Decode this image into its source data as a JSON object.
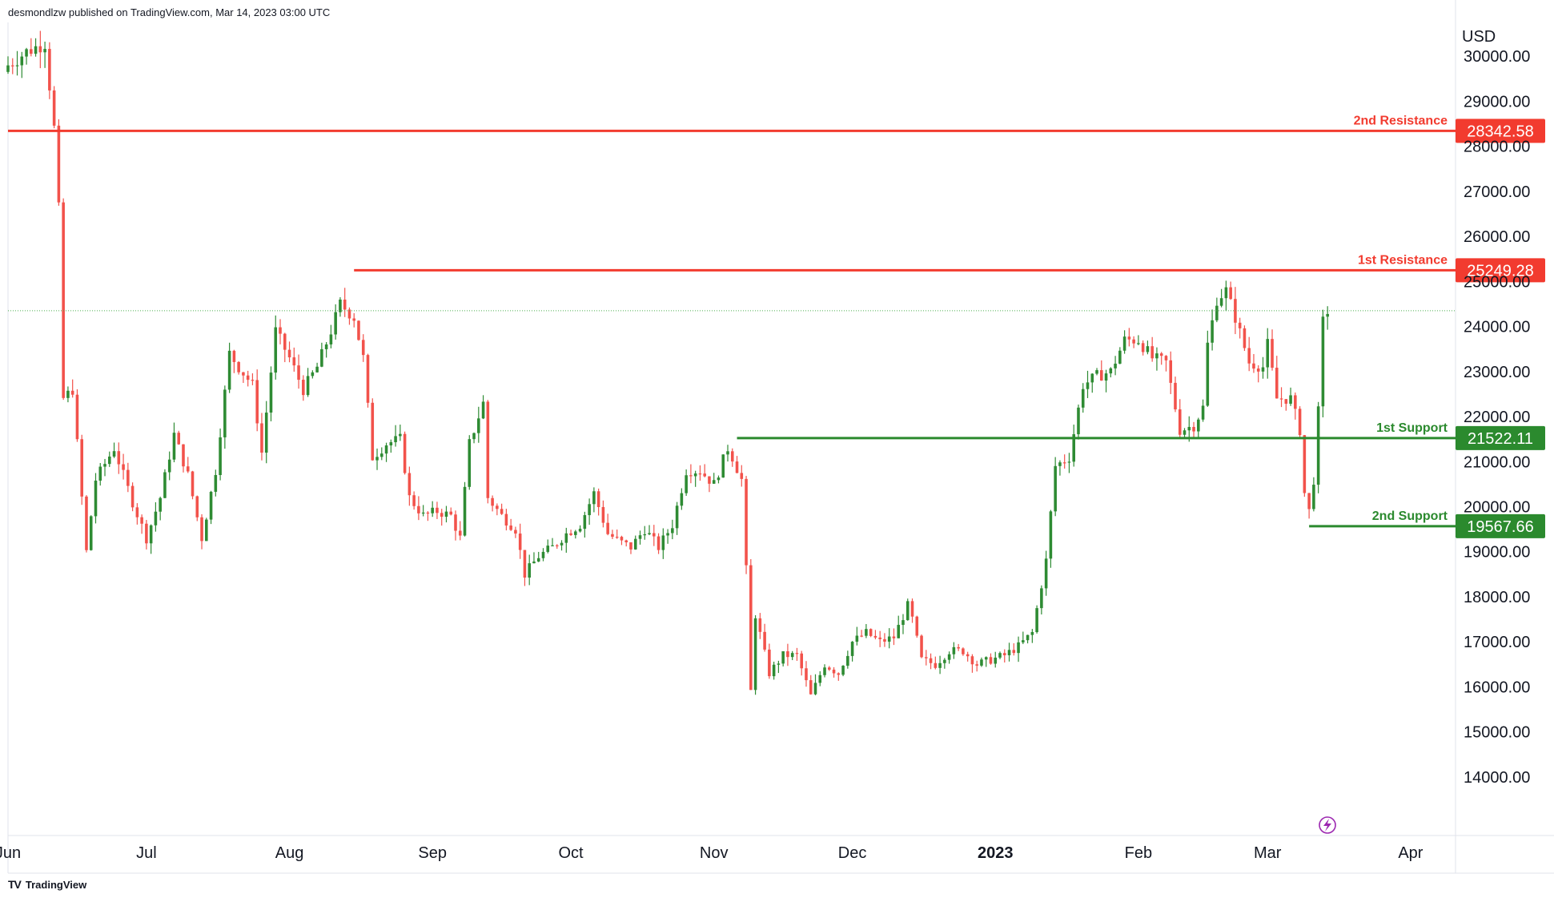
{
  "header": {
    "published": "desmondlzw published on TradingView.com, Mar 14, 2023 03:00 UTC"
  },
  "footer": {
    "logo": "TV",
    "brand": "TradingView"
  },
  "colors": {
    "up": "#2e8b33",
    "down": "#f2524b",
    "resistance": "#f23b2f",
    "support": "#2b8a2e",
    "grid": "#e0e3eb",
    "last_price_line": "#4caf50",
    "text": "#131722",
    "flash": "#9c27b0"
  },
  "icons": {
    "flash": "lightning-icon",
    "logo": "tradingview-logo-icon"
  },
  "chart_data": {
    "type": "candlestick",
    "symbol_currency": "USD",
    "xlabel": "",
    "ylabel": "",
    "ylim": [
      12700,
      30750
    ],
    "xlim": [
      "2022-06-01",
      "2023-04-09"
    ],
    "y_ticks": [
      "30000.00",
      "29000.00",
      "28000.00",
      "27000.00",
      "26000.00",
      "25000.00",
      "24000.00",
      "23000.00",
      "22000.00",
      "21000.00",
      "20000.00",
      "19000.00",
      "18000.00",
      "17000.00",
      "16000.00",
      "15000.00",
      "14000.00"
    ],
    "x_ticks": [
      {
        "label": "Jun",
        "date": "2022-06-01",
        "bold": false
      },
      {
        "label": "Jul",
        "date": "2022-07-01",
        "bold": false
      },
      {
        "label": "Aug",
        "date": "2022-08-01",
        "bold": false
      },
      {
        "label": "Sep",
        "date": "2022-09-01",
        "bold": false
      },
      {
        "label": "Oct",
        "date": "2022-10-01",
        "bold": false
      },
      {
        "label": "Nov",
        "date": "2022-11-01",
        "bold": false
      },
      {
        "label": "Dec",
        "date": "2022-12-01",
        "bold": false
      },
      {
        "label": "2023",
        "date": "2023-01-01",
        "bold": true
      },
      {
        "label": "Feb",
        "date": "2023-02-01",
        "bold": false
      },
      {
        "label": "Mar",
        "date": "2023-03-01",
        "bold": false
      },
      {
        "label": "Apr",
        "date": "2023-04-01",
        "bold": false
      }
    ],
    "levels": [
      {
        "name": "2nd Resistance",
        "value": 28342.58,
        "value_label": "28342.58",
        "kind": "resistance",
        "start": "2022-06-01"
      },
      {
        "name": "1st Resistance",
        "value": 25249.28,
        "value_label": "25249.28",
        "kind": "resistance",
        "start": "2022-08-15"
      },
      {
        "name": "1st Support",
        "value": 21522.11,
        "value_label": "21522.11",
        "kind": "support",
        "start": "2022-11-06"
      },
      {
        "name": "2nd Support",
        "value": 19567.66,
        "value_label": "19567.66",
        "kind": "support",
        "start": "2023-03-10"
      }
    ],
    "last_price": 24350,
    "close_path": {
      "start": "2022-06-01",
      "points": [
        [
          "2022-06-01",
          29800
        ],
        [
          "2022-06-05",
          30100
        ],
        [
          "2022-06-09",
          30300
        ],
        [
          "2022-06-11",
          28400
        ],
        [
          "2022-06-12",
          26600
        ],
        [
          "2022-06-13",
          22400
        ],
        [
          "2022-06-15",
          22600
        ],
        [
          "2022-06-18",
          19000
        ],
        [
          "2022-06-20",
          20600
        ],
        [
          "2022-06-24",
          21300
        ],
        [
          "2022-06-28",
          20100
        ],
        [
          "2022-07-01",
          19300
        ],
        [
          "2022-07-04",
          20200
        ],
        [
          "2022-07-07",
          21600
        ],
        [
          "2022-07-10",
          20700
        ],
        [
          "2022-07-13",
          19300
        ],
        [
          "2022-07-16",
          20800
        ],
        [
          "2022-07-19",
          23400
        ],
        [
          "2022-07-21",
          23100
        ],
        [
          "2022-07-24",
          22700
        ],
        [
          "2022-07-26",
          21200
        ],
        [
          "2022-07-29",
          23900
        ],
        [
          "2022-08-01",
          23300
        ],
        [
          "2022-08-04",
          22600
        ],
        [
          "2022-08-07",
          23100
        ],
        [
          "2022-08-10",
          23900
        ],
        [
          "2022-08-12",
          24500
        ],
        [
          "2022-08-15",
          24200
        ],
        [
          "2022-08-17",
          23300
        ],
        [
          "2022-08-19",
          21100
        ],
        [
          "2022-08-22",
          21400
        ],
        [
          "2022-08-25",
          21500
        ],
        [
          "2022-08-27",
          20200
        ],
        [
          "2022-08-30",
          19800
        ],
        [
          "2022-09-02",
          19900
        ],
        [
          "2022-09-05",
          19800
        ],
        [
          "2022-09-07",
          19300
        ],
        [
          "2022-09-09",
          21400
        ],
        [
          "2022-09-12",
          22300
        ],
        [
          "2022-09-13",
          20200
        ],
        [
          "2022-09-16",
          19800
        ],
        [
          "2022-09-19",
          19500
        ],
        [
          "2022-09-21",
          18500
        ],
        [
          "2022-09-24",
          18900
        ],
        [
          "2022-09-27",
          19100
        ],
        [
          "2022-09-30",
          19400
        ],
        [
          "2022-10-03",
          19600
        ],
        [
          "2022-10-06",
          20300
        ],
        [
          "2022-10-09",
          19400
        ],
        [
          "2022-10-12",
          19200
        ],
        [
          "2022-10-14",
          19100
        ],
        [
          "2022-10-17",
          19500
        ],
        [
          "2022-10-20",
          19100
        ],
        [
          "2022-10-23",
          19600
        ],
        [
          "2022-10-26",
          20800
        ],
        [
          "2022-10-29",
          20800
        ],
        [
          "2022-11-01",
          20500
        ],
        [
          "2022-11-04",
          21300
        ],
        [
          "2022-11-05",
          21100
        ],
        [
          "2022-11-07",
          20600
        ],
        [
          "2022-11-08",
          18600
        ],
        [
          "2022-11-09",
          15900
        ],
        [
          "2022-11-10",
          17600
        ],
        [
          "2022-11-13",
          16300
        ],
        [
          "2022-11-16",
          16700
        ],
        [
          "2022-11-19",
          16700
        ],
        [
          "2022-11-22",
          15800
        ],
        [
          "2022-11-25",
          16500
        ],
        [
          "2022-11-28",
          16300
        ],
        [
          "2022-12-01",
          17000
        ],
        [
          "2022-12-04",
          17200
        ],
        [
          "2022-12-07",
          17000
        ],
        [
          "2022-12-10",
          17100
        ],
        [
          "2022-12-13",
          17800
        ],
        [
          "2022-12-14",
          17500
        ],
        [
          "2022-12-16",
          16600
        ],
        [
          "2022-12-19",
          16500
        ],
        [
          "2022-12-22",
          16800
        ],
        [
          "2022-12-25",
          16800
        ],
        [
          "2022-12-28",
          16500
        ],
        [
          "2022-12-31",
          16600
        ],
        [
          "2023-01-03",
          16700
        ],
        [
          "2023-01-06",
          16900
        ],
        [
          "2023-01-09",
          17200
        ],
        [
          "2023-01-12",
          18800
        ],
        [
          "2023-01-14",
          20900
        ],
        [
          "2023-01-17",
          21100
        ],
        [
          "2023-01-20",
          22700
        ],
        [
          "2023-01-23",
          22900
        ],
        [
          "2023-01-26",
          23000
        ],
        [
          "2023-01-29",
          23700
        ],
        [
          "2023-02-01",
          23700
        ],
        [
          "2023-02-04",
          23300
        ],
        [
          "2023-02-07",
          23200
        ],
        [
          "2023-02-10",
          21700
        ],
        [
          "2023-02-13",
          21800
        ],
        [
          "2023-02-15",
          22200
        ],
        [
          "2023-02-16",
          23600
        ],
        [
          "2023-02-18",
          24600
        ],
        [
          "2023-02-20",
          24800
        ],
        [
          "2023-02-22",
          24200
        ],
        [
          "2023-02-25",
          23200
        ],
        [
          "2023-02-28",
          23100
        ],
        [
          "2023-03-01",
          23600
        ],
        [
          "2023-03-03",
          22400
        ],
        [
          "2023-03-06",
          22400
        ],
        [
          "2023-03-08",
          21700
        ],
        [
          "2023-03-09",
          20300
        ],
        [
          "2023-03-10",
          19900
        ],
        [
          "2023-03-11",
          20600
        ],
        [
          "2023-03-12",
          22100
        ],
        [
          "2023-03-13",
          24100
        ],
        [
          "2023-03-14",
          24350
        ]
      ]
    }
  }
}
